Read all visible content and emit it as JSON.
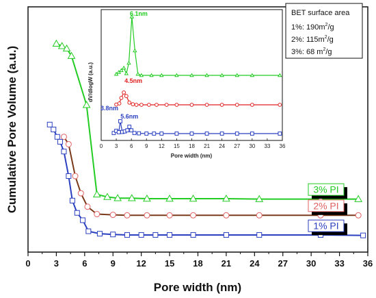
{
  "chart_data": [
    {
      "type": "line",
      "xlabel": "Pore width (nm)",
      "ylabel": "Cumulative Pore Volume (a.u.)",
      "xlim": [
        0,
        36
      ],
      "xticks": [
        "0",
        "3",
        "6",
        "9",
        "12",
        "15",
        "18",
        "21",
        "24",
        "27",
        "30",
        "33",
        "36"
      ],
      "y_tick_labels": "none",
      "legend_placement": "right (labels beside curves)",
      "series": [
        {
          "name": "3% PI",
          "label": "3% PI",
          "color": "#22cc22",
          "marker": "triangle",
          "x": [
            3.0,
            3.6,
            4.1,
            4.6,
            6.2,
            7.3,
            8.4,
            9.5,
            11.0,
            12.6,
            15.0,
            17.5,
            21.0,
            24.5,
            31.0,
            35.0
          ],
          "y": [
            0.85,
            0.84,
            0.83,
            0.8,
            0.6,
            0.235,
            0.225,
            0.22,
            0.22,
            0.218,
            0.218,
            0.218,
            0.218,
            0.216,
            0.216,
            0.216
          ]
        },
        {
          "name": "2% PI",
          "label": "2% PI",
          "color": "#e06060",
          "line_color": "#7a3a1a",
          "marker": "circle",
          "x": [
            3.8,
            4.3,
            5.0,
            5.6,
            6.3,
            7.3,
            9.0,
            10.5,
            12.6,
            15.0,
            17.5,
            21.0,
            24.5,
            31.0,
            35.0
          ],
          "y": [
            0.47,
            0.44,
            0.31,
            0.24,
            0.185,
            0.155,
            0.152,
            0.15,
            0.15,
            0.15,
            0.15,
            0.15,
            0.15,
            0.15,
            0.15
          ]
        },
        {
          "name": "1% PI",
          "label": "1% PI",
          "color": "#2a3fbf",
          "marker": "square",
          "x": [
            2.3,
            2.7,
            3.1,
            3.4,
            3.8,
            4.3,
            4.7,
            5.2,
            5.8,
            6.4,
            7.6,
            9.0,
            10.5,
            12.0,
            13.5,
            15.0,
            17.5,
            21.0,
            24.5,
            31.0,
            35.5
          ],
          "y": [
            0.52,
            0.5,
            0.47,
            0.45,
            0.41,
            0.31,
            0.21,
            0.16,
            0.13,
            0.085,
            0.075,
            0.072,
            0.07,
            0.07,
            0.07,
            0.07,
            0.07,
            0.07,
            0.07,
            0.07,
            0.068
          ]
        }
      ]
    },
    {
      "type": "line",
      "xlabel": "Pore width (nm)",
      "ylabel": "dV/dlogW (a.u.)",
      "xlim": [
        0,
        36
      ],
      "xticks": [
        "0",
        "3",
        "6",
        "9",
        "12",
        "15",
        "18",
        "21",
        "24",
        "27",
        "30",
        "33",
        "36"
      ],
      "peak_labels": [
        {
          "text": "6.1nm",
          "x": 6.1,
          "color": "#22cc22"
        },
        {
          "text": "4.5nm",
          "x": 4.5,
          "color": "#e02020"
        },
        {
          "text": "3.8nm",
          "x": 3.8,
          "color": "#2a3fbf"
        },
        {
          "text": "5.6nm",
          "x": 5.6,
          "color": "#2a3fbf"
        }
      ],
      "series": [
        {
          "name": "3%",
          "color": "#22cc22",
          "marker": "triangle",
          "x": [
            3.0,
            3.5,
            4.0,
            4.5,
            5.0,
            5.5,
            6.1,
            6.7,
            7.3,
            8.0,
            10.0,
            12.0,
            15.0,
            18.0,
            21.0,
            24.0,
            27.0,
            30.0,
            35.5
          ],
          "y": [
            0.02,
            0.05,
            0.08,
            0.12,
            0.03,
            0.2,
            0.95,
            0.4,
            0.02,
            0.0,
            0.0,
            0.0,
            0.0,
            0.0,
            0.0,
            0.0,
            0.0,
            0.0,
            0.0
          ]
        },
        {
          "name": "2%",
          "color": "#e02020",
          "marker": "circle",
          "x": [
            3.0,
            3.6,
            4.0,
            4.5,
            5.0,
            5.6,
            6.3,
            7.0,
            8.0,
            9.5,
            11.0,
            13.0,
            15.0,
            18.0,
            21.0,
            24.0,
            27.0,
            30.0,
            35.5
          ],
          "y": [
            0.01,
            0.05,
            0.25,
            0.45,
            0.32,
            0.08,
            0.02,
            0.0,
            0.0,
            0.0,
            0.0,
            0.0,
            0.0,
            0.0,
            0.0,
            0.0,
            0.0,
            0.0,
            0.0
          ]
        },
        {
          "name": "1%",
          "color": "#2a3fbf",
          "marker": "square",
          "x": [
            2.5,
            3.0,
            3.5,
            3.8,
            4.2,
            4.7,
            5.2,
            5.6,
            6.0,
            6.6,
            7.5,
            9.0,
            10.5,
            12.0,
            15.0,
            18.0,
            21.0,
            24.0,
            27.0,
            30.0,
            35.5
          ],
          "y": [
            0.02,
            0.1,
            0.05,
            0.45,
            0.06,
            0.08,
            0.12,
            0.25,
            0.12,
            0.02,
            0.01,
            0.0,
            0.0,
            0.0,
            0.0,
            0.0,
            0.0,
            0.0,
            0.0,
            0.0,
            0.0
          ]
        }
      ]
    }
  ],
  "bet_box": {
    "title": "BET surface area",
    "rows": [
      {
        "prefix": "1%: 190m",
        "sup": "2",
        "suffix": "/g"
      },
      {
        "prefix": "2%: 115m",
        "sup": "2",
        "suffix": "/g"
      },
      {
        "prefix": "3%: 68  m",
        "sup": "2",
        "suffix": "/g"
      }
    ]
  },
  "colors": {
    "axis": "#111111",
    "green": "#22cc22",
    "red": "#e02020",
    "brown": "#7a3a1a",
    "blue": "#2a3fbf"
  }
}
